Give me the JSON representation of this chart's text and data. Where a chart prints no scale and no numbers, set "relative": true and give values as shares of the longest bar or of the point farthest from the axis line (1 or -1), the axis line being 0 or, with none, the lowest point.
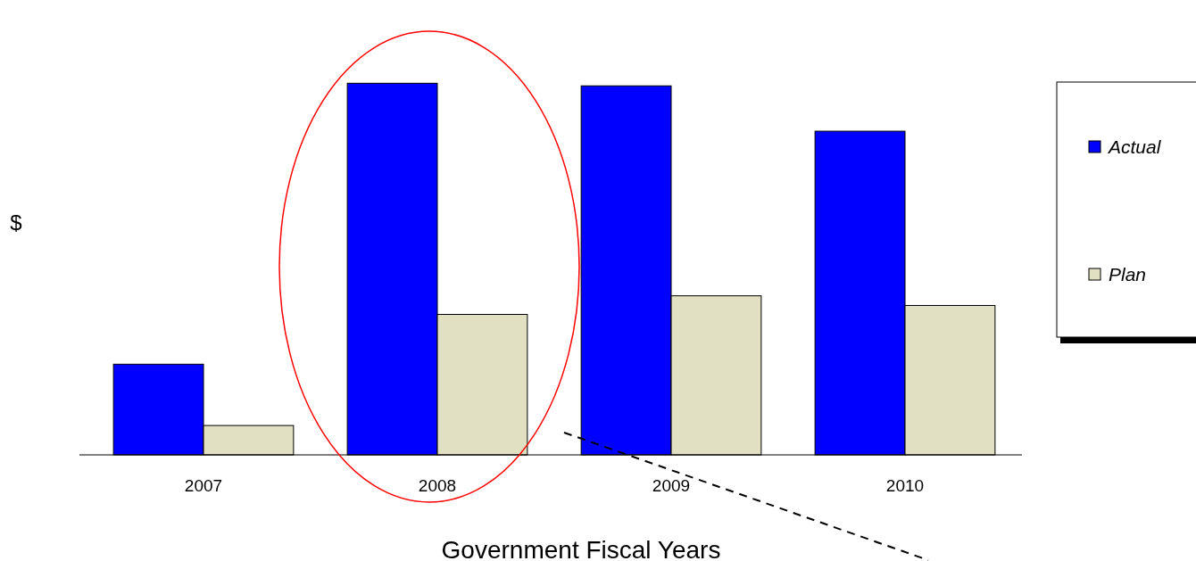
{
  "chart_data": {
    "type": "bar",
    "relative": true,
    "xlabel": "Government Fiscal Years",
    "ylabel": "$",
    "categories": [
      "2007",
      "2008",
      "2009",
      "2010"
    ],
    "series": [
      {
        "name": "Actual",
        "color": "#0000ff",
        "values": [
          0.244,
          1,
          0.993,
          0.871
        ]
      },
      {
        "name": "Plan",
        "color": "#e1e0c2",
        "values": [
          0.079,
          0.378,
          0.428,
          0.402
        ]
      }
    ],
    "legend": "right"
  }
}
